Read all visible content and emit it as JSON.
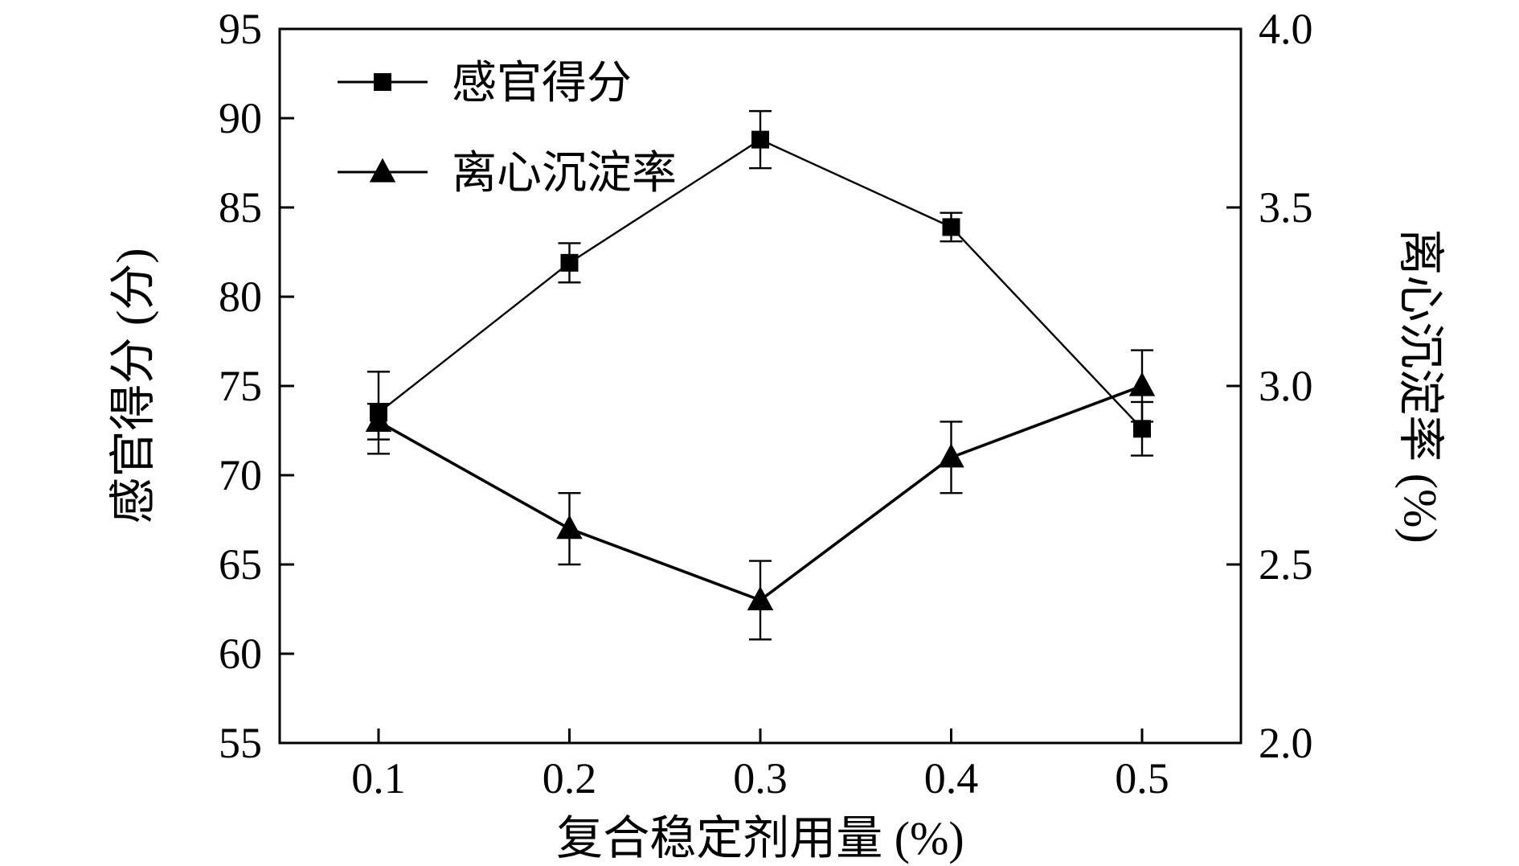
{
  "chart_data": {
    "type": "line",
    "title": "",
    "x": [
      0.1,
      0.2,
      0.3,
      0.4,
      0.5
    ],
    "x_tick_labels": [
      "0.1",
      "0.2",
      "0.3",
      "0.4",
      "0.5"
    ],
    "xlabel": "复合稳定剂用量 (%)",
    "grid": false,
    "legend_position": "top-left-inside",
    "left_axis": {
      "label": "感官得分 (分)",
      "min": 55,
      "max": 95,
      "step": 5
    },
    "right_axis": {
      "label": "离心沉淀率 (%)",
      "min": 2.0,
      "max": 4.0,
      "step": 0.5
    },
    "series": [
      {
        "name": "感官得分",
        "axis": "left",
        "marker": "square",
        "line_width": 2.4,
        "values": [
          73.5,
          81.9,
          88.8,
          83.9,
          72.6
        ],
        "errors": [
          2.3,
          1.1,
          1.6,
          0.8,
          1.5
        ]
      },
      {
        "name": "离心沉淀率",
        "axis": "right",
        "marker": "triangle",
        "line_width": 3.6,
        "values": [
          2.9,
          2.6,
          2.4,
          2.8,
          3.0
        ],
        "errors": [
          0.05,
          0.1,
          0.11,
          0.1,
          0.1
        ]
      }
    ],
    "color": "#000000",
    "background": "#ffffff"
  }
}
